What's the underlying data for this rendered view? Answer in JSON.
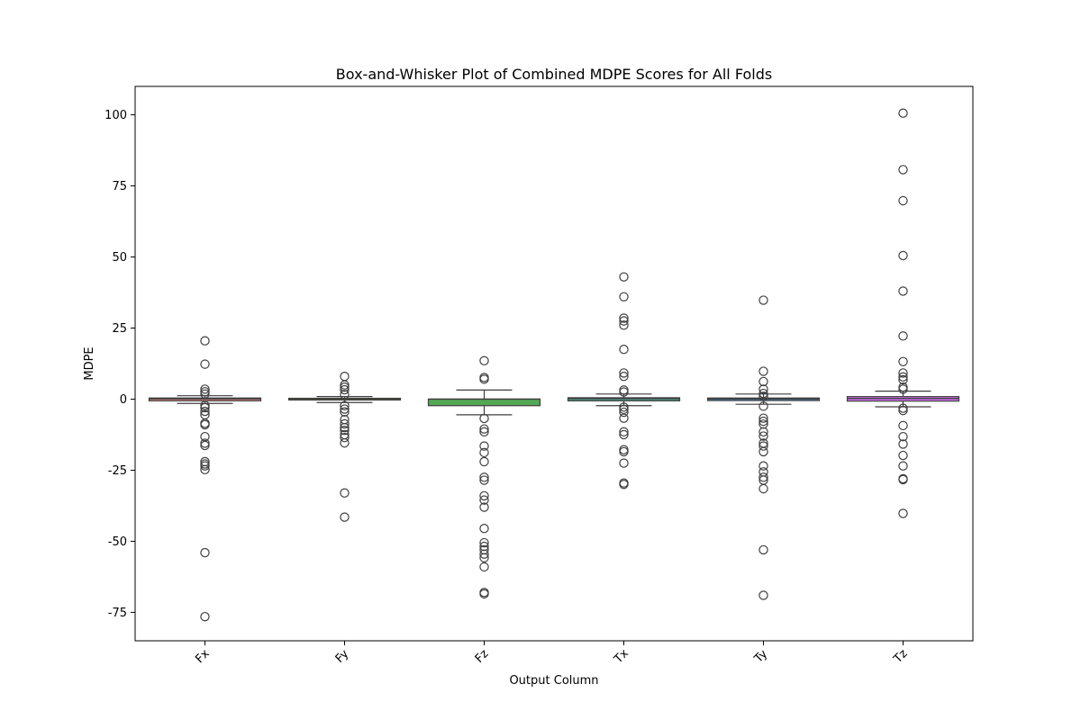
{
  "chart_data": {
    "type": "box",
    "title": "Box-and-Whisker Plot of Combined MDPE Scores for All Folds",
    "xlabel": "Output Column",
    "ylabel": "MDPE",
    "ylim": [
      -85,
      110
    ],
    "yticks": [
      -75,
      -50,
      -25,
      0,
      25,
      50,
      75,
      100
    ],
    "grid": false,
    "series": [
      {
        "name": "Fx",
        "color": "#e58a8a",
        "q1": -0.6,
        "median": 0.1,
        "q3": 0.4,
        "whisker_low": -1.5,
        "whisker_high": 1.2,
        "outliers": [
          20.5,
          12.3,
          3.5,
          2.6,
          1.8,
          -2.2,
          -3.0,
          -4.3,
          -5.5,
          -8.5,
          -9.0,
          -13.2,
          -15.5,
          -16.3,
          -22.0,
          -22.8,
          -23.5,
          -24.8,
          -54.0,
          -76.5
        ]
      },
      {
        "name": "Fy",
        "color": "#c7a64c",
        "q1": -0.3,
        "median": 0.1,
        "q3": 0.3,
        "whisker_low": -1.2,
        "whisker_high": 0.9,
        "outliers": [
          8.0,
          5.0,
          4.2,
          3.3,
          1.6,
          -2.3,
          -3.5,
          -4.5,
          -7.2,
          -8.7,
          -10.0,
          -11.0,
          -12.5,
          -13.5,
          -15.4,
          -33.0,
          -41.5
        ]
      },
      {
        "name": "Fz",
        "color": "#54a855",
        "q1": -2.3,
        "median": 0.0,
        "q3": 0.0,
        "whisker_low": -5.5,
        "whisker_high": 3.2,
        "outliers": [
          13.5,
          7.6,
          7.0,
          -6.8,
          -10.5,
          -11.5,
          -16.5,
          -18.8,
          -22.0,
          -27.5,
          -28.5,
          -34.0,
          -35.5,
          -38.0,
          -45.5,
          -50.5,
          -51.8,
          -53.0,
          -54.5,
          -55.8,
          -59.0,
          -68.0,
          -68.5
        ]
      },
      {
        "name": "Tx",
        "color": "#4f9b87",
        "q1": -0.6,
        "median": 0.2,
        "q3": 0.5,
        "whisker_low": -2.3,
        "whisker_high": 1.8,
        "outliers": [
          43.0,
          36.0,
          28.5,
          27.5,
          26.0,
          17.5,
          9.2,
          8.0,
          3.2,
          2.5,
          -2.8,
          -3.6,
          -4.6,
          -6.7,
          -11.5,
          -12.5,
          -17.8,
          -18.5,
          -22.5,
          -29.5,
          -30.0
        ]
      },
      {
        "name": "Ty",
        "color": "#4c86b5",
        "q1": -0.5,
        "median": 0.1,
        "q3": 0.4,
        "whisker_low": -1.8,
        "whisker_high": 1.8,
        "outliers": [
          34.8,
          9.8,
          6.2,
          3.5,
          2.0,
          1.0,
          -2.5,
          -6.7,
          -7.8,
          -8.8,
          -11.5,
          -13.0,
          -15.5,
          -16.5,
          -18.5,
          -23.5,
          -25.6,
          -27.5,
          -28.5,
          -31.5,
          -53.0,
          -69.0
        ]
      },
      {
        "name": "Tz",
        "color": "#d46ff0",
        "q1": -0.7,
        "median": 0.2,
        "q3": 0.9,
        "whisker_low": -2.7,
        "whisker_high": 2.8,
        "outliers": [
          100.6,
          80.7,
          69.8,
          50.5,
          38.0,
          22.2,
          13.2,
          9.2,
          7.8,
          6.8,
          4.2,
          3.5,
          -3.2,
          -4.0,
          -9.3,
          -13.2,
          -15.8,
          -19.8,
          -23.5,
          -28.0,
          -28.3,
          -40.2
        ]
      }
    ]
  }
}
